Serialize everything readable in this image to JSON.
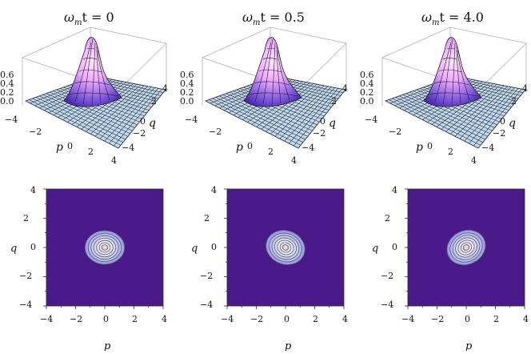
{
  "figure": {
    "panels": [
      {
        "title": {
          "symbol": "ω",
          "subscript": "m",
          "rest": "t = 0"
        },
        "surface": {
          "z_ticks": [
            "0.6",
            "0.4",
            "0.2",
            "0.0"
          ],
          "p_ticks": [
            "−4",
            "−2",
            "0",
            "2",
            "4"
          ],
          "q_ticks": [
            "4",
            "2",
            "0",
            "−2",
            "−4"
          ],
          "p_label": "p",
          "q_label": "q"
        },
        "contour": {
          "x_ticks": [
            "−4",
            "−2",
            "0",
            "2",
            "4"
          ],
          "y_ticks": [
            "4",
            "2",
            "0",
            "−2",
            "−4"
          ],
          "x_label": "p",
          "y_label": "q",
          "center": [
            0.0,
            0.0
          ],
          "semi_axes": [
            1.35,
            1.15
          ],
          "tilt_deg": 0
        }
      },
      {
        "title": {
          "symbol": "ω",
          "subscript": "m",
          "rest": "t = 0.5"
        },
        "surface": {
          "z_ticks": [
            "0.6",
            "0.4",
            "0.2",
            "0.0"
          ],
          "p_ticks": [
            "−4",
            "−2",
            "0",
            "2",
            "4"
          ],
          "q_ticks": [
            "4",
            "2",
            "0",
            "−2",
            "−4"
          ],
          "p_label": "p",
          "q_label": "q"
        },
        "contour": {
          "x_ticks": [
            "−4",
            "−2",
            "0",
            "2",
            "4"
          ],
          "y_ticks": [
            "4",
            "2",
            "0",
            "−2",
            "−4"
          ],
          "x_label": "p",
          "y_label": "q",
          "center": [
            0.0,
            0.0
          ],
          "semi_axes": [
            1.35,
            1.15
          ],
          "tilt_deg": 20
        }
      },
      {
        "title": {
          "symbol": "ω",
          "subscript": "m",
          "rest": "t = 4.0"
        },
        "surface": {
          "z_ticks": [
            "0.6",
            "0.4",
            "0.2",
            "0.0"
          ],
          "p_ticks": [
            "−4",
            "−2",
            "0",
            "2",
            "4"
          ],
          "q_ticks": [
            "4",
            "2",
            "0",
            "−2",
            "−4"
          ],
          "p_label": "p",
          "q_label": "q"
        },
        "contour": {
          "x_ticks": [
            "−4",
            "−2",
            "0",
            "2",
            "4"
          ],
          "y_ticks": [
            "4",
            "2",
            "0",
            "−2",
            "−4"
          ],
          "x_label": "p",
          "y_label": "q",
          "center": [
            0.0,
            0.0
          ],
          "semi_axes": [
            1.35,
            1.15
          ],
          "tilt_deg": -25
        }
      }
    ],
    "colors": {
      "contour_background": "#4a1a8a",
      "surface_base": "#bfd9f3",
      "peak_pink": "#ffd7f3",
      "peak_purple": "#6f4fd1"
    }
  }
}
